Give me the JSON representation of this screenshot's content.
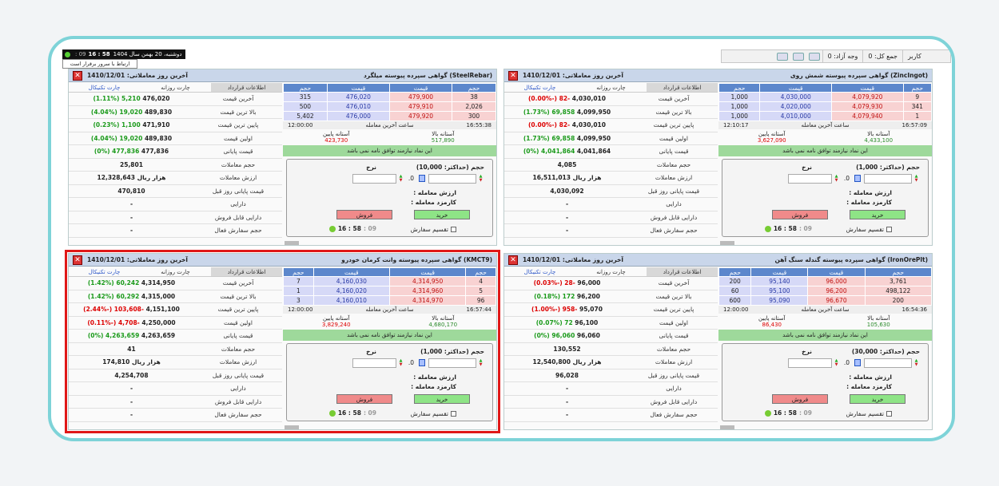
{
  "status": {
    "time": "16 : 58",
    "seconds": ": 09",
    "date": "دوشنبه، 20 بهمن سال 1404",
    "tooltip": "ارتباط با سرور برقرار است"
  },
  "toolbar": {
    "user": "کاربر",
    "total": "جمع کل: 0",
    "free": "وجه آزاد: 0"
  },
  "common": {
    "last_trade_date": "آخرین روز معاملاتی: 1410/12/01",
    "tab_contract": "اطلاعات قرارداد",
    "tab_daily": "چارت روزانه",
    "tab_tech": "چارت تکنیکال",
    "lbl_last": "آخرین قیمت",
    "lbl_high": "بالا ترین قیمت",
    "lbl_low": "پایین ترین قیمت",
    "lbl_first": "اولین قیمت",
    "lbl_close": "قیمت پایانی",
    "lbl_volume": "حجم معاملات",
    "lbl_value": "ارزش معاملات",
    "lbl_prev": "قیمت پایانی روز قبل",
    "lbl_assets": "دارایی",
    "lbl_sellable": "دارایی قابل فروش",
    "lbl_active": "حجم سفارش فعال",
    "col_vol": "حجم",
    "col_price": "قیمت",
    "last_trade_time_label": "ساعت آخرین معامله",
    "lower_limit": "آستانه پایین",
    "upper_limit": "آستانه بالا",
    "msg": "این نماد نیازمند توافق نامه نمی باشد",
    "rate": "نرخ",
    "trade_value": "ارزش معامله :",
    "commission": "کارمزد معامله :",
    "buy": "خرید",
    "sell": "فروش",
    "split": "تقسیم سفارش",
    "zero": "0.",
    "clock": "16 : 58",
    "clock_sec": ": 09"
  },
  "panels": [
    {
      "title": "(ZincIngot) گواهی سپرده پیوسته شمش روی",
      "max_vol": "حجم (حداکثر: 1,000)",
      "last": "4,030,010",
      "last_chg": "(0.00%-) 82-",
      "last_neg": true,
      "high": "4,099,950",
      "high_chg": "(1.73%) 69,858",
      "high_neg": false,
      "low": "4,030,010",
      "low_chg": "(0.00%-) 82-",
      "low_neg": true,
      "first": "4,099,950",
      "first_chg": "(1.73%) 69,858",
      "first_neg": false,
      "close": "4,041,864",
      "close_chg": "(0%) 4,041,864",
      "close_neg": false,
      "volume": "4,085",
      "value": "16,511,013 هزار ریال",
      "prev": "4,030,092",
      "assets": "-",
      "sellable": "-",
      "active": "-",
      "orders": [
        [
          "1,000",
          "4,030,000",
          "4,079,920",
          "9"
        ],
        [
          "1,000",
          "4,020,000",
          "4,079,930",
          "341"
        ],
        [
          "1,000",
          "4,010,000",
          "4,079,940",
          "1"
        ]
      ],
      "t1": "12:10:17",
      "t2": "16:57:09",
      "lo_lim": "3,627,090",
      "hi_lim": "4,433,100"
    },
    {
      "title": "(SteelRebar) گواهی سپرده پیوسته میلگرد",
      "max_vol": "حجم (حداکثر: 10,000)",
      "last": "476,020",
      "last_chg": "(1.11%) 5,210",
      "last_neg": false,
      "high": "489,830",
      "high_chg": "(4.04%) 19,020",
      "high_neg": false,
      "low": "471,910",
      "low_chg": "(0.23%) 1,100",
      "low_neg": false,
      "first": "489,830",
      "first_chg": "(4.04%) 19,020",
      "first_neg": false,
      "close": "477,836",
      "close_chg": "(0%) 477,836",
      "close_neg": false,
      "volume": "25,801",
      "value": "12,328,643 هزار ریال",
      "prev": "470,810",
      "assets": "-",
      "sellable": "-",
      "active": "-",
      "orders": [
        [
          "315",
          "476,020",
          "479,900",
          "38"
        ],
        [
          "500",
          "476,010",
          "479,910",
          "2,026"
        ],
        [
          "5,402",
          "476,000",
          "479,920",
          "300"
        ]
      ],
      "t1": "12:00:00",
      "t2": "16:55:38",
      "lo_lim": "423,730",
      "hi_lim": "517,890"
    },
    {
      "title": "(IronOrePlt) گواهی سپرده پیوسته گندله سنگ آهن",
      "max_vol": "حجم (حداکثر: 30,000)",
      "last": "96,000",
      "last_chg": "(0.03%-) 28-",
      "last_neg": true,
      "high": "96,200",
      "high_chg": "(0.18%) 172",
      "high_neg": false,
      "low": "95,070",
      "low_chg": "(1.00%-) 958-",
      "low_neg": true,
      "first": "96,100",
      "first_chg": "(0.07%) 72",
      "first_neg": false,
      "close": "96,060",
      "close_chg": "(0%) 96,060",
      "close_neg": false,
      "volume": "130,552",
      "value": "12,540,800 هزار ریال",
      "prev": "96,028",
      "assets": "-",
      "sellable": "-",
      "active": "-",
      "orders": [
        [
          "200",
          "95,140",
          "96,000",
          "3,761"
        ],
        [
          "60",
          "95,100",
          "96,200",
          "498,122"
        ],
        [
          "600",
          "95,090",
          "96,670",
          "200"
        ]
      ],
      "t1": "12:00:00",
      "t2": "16:54:36",
      "lo_lim": "86,430",
      "hi_lim": "105,630"
    },
    {
      "title": "(KMCT9) گواهی سپرده پیوسته وانت کرمان خودرو",
      "max_vol": "حجم (حداکثر: 1,000)",
      "last": "4,314,950",
      "last_chg": "(1.42%) 60,242",
      "last_neg": false,
      "high": "4,315,000",
      "high_chg": "(1.42%) 60,292",
      "high_neg": false,
      "low": "4,151,100",
      "low_chg": "(2.44%-) 103,608-",
      "low_neg": true,
      "first": "4,250,000",
      "first_chg": "(0.11%-) 4,708-",
      "first_neg": true,
      "close": "4,263,659",
      "close_chg": "(0%) 4,263,659",
      "close_neg": false,
      "volume": "41",
      "value": "174,810 هزار ریال",
      "prev": "4,254,708",
      "assets": "-",
      "sellable": "-",
      "active": "-",
      "orders": [
        [
          "7",
          "4,160,030",
          "4,314,950",
          "4"
        ],
        [
          "1",
          "4,160,020",
          "4,314,960",
          "5"
        ],
        [
          "3",
          "4,160,010",
          "4,314,970",
          "96"
        ]
      ],
      "t1": "12:00:00",
      "t2": "16:57:44",
      "lo_lim": "3,829,240",
      "hi_lim": "4,680,170"
    }
  ]
}
